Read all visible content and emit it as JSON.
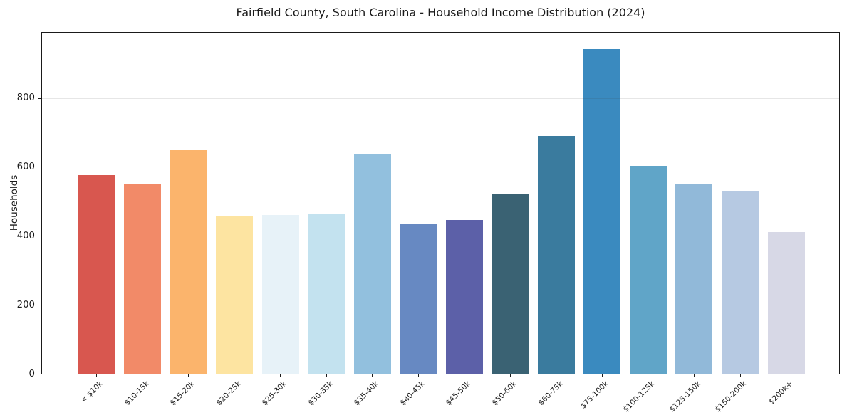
{
  "chart_data": {
    "type": "bar",
    "title": "Fairfield County, South Carolina - Household Income Distribution (2024)",
    "xlabel": "",
    "ylabel": "Households",
    "categories": [
      "< $10k",
      "$10-15k",
      "$15-20k",
      "$20-25k",
      "$25-30k",
      "$30-35k",
      "$35-40k",
      "$40-45k",
      "$45-50k",
      "$50-60k",
      "$60-75k",
      "$75-100k",
      "$100-125k",
      "$125-150k",
      "$150-200k",
      "$200k+"
    ],
    "values": [
      576,
      550,
      648,
      457,
      460,
      464,
      636,
      435,
      447,
      523,
      690,
      942,
      604,
      550,
      531,
      410
    ],
    "bar_colors": [
      "#d8574f",
      "#f28a68",
      "#fbb46c",
      "#fde4a1",
      "#e7f2f8",
      "#c3e2ef",
      "#92c0de",
      "#6789c2",
      "#5c60a8",
      "#3a6273",
      "#3a7b9e",
      "#3a8abf",
      "#60a5c8",
      "#91b9d9",
      "#b6c9e2",
      "#d7d8e6"
    ],
    "ylim": [
      0,
      989
    ],
    "yticks": [
      0,
      200,
      400,
      600,
      800
    ],
    "x_tick_rotation_deg": 45,
    "grid": "horizontal gridlines at y-ticks, light gray, drawn over bars",
    "legend": "none",
    "background_color": "#ffffff",
    "axis_color": "#1a1a1a"
  }
}
